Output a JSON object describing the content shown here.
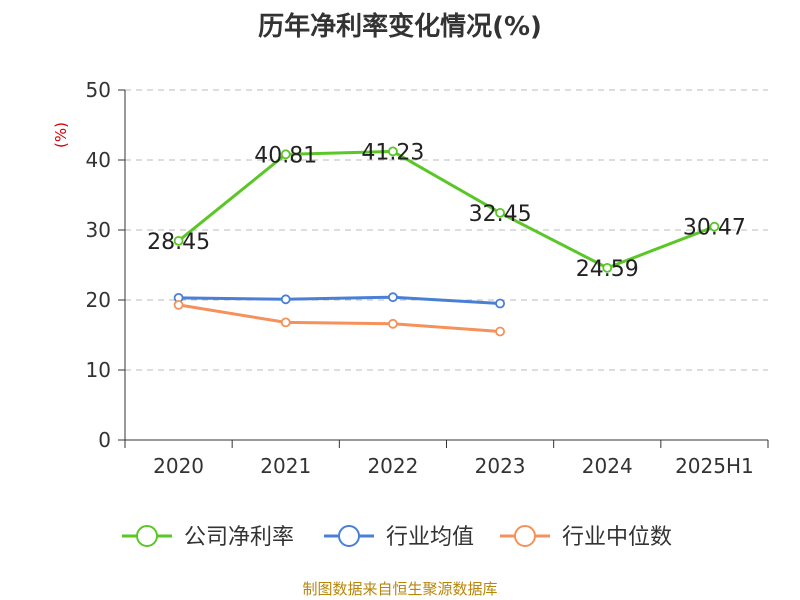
{
  "chart_data": {
    "type": "line",
    "title": "历年净利率变化情况(%)",
    "ylabel": "(%)",
    "categories": [
      "2020",
      "2021",
      "2022",
      "2023",
      "2024",
      "2025H1"
    ],
    "ylim": [
      0,
      50
    ],
    "yticks": [
      0,
      10,
      20,
      30,
      40,
      50
    ],
    "grid": true,
    "legend_position": "bottom",
    "series": [
      {
        "name": "公司净利率",
        "color": "#5ac727",
        "values": [
          28.45,
          40.81,
          41.23,
          32.45,
          24.59,
          30.47
        ],
        "labels": [
          "28.45",
          "40.81",
          "41.23",
          "32.45",
          "24.59",
          "30.47"
        ]
      },
      {
        "name": "行业均值",
        "color": "#4a7fd6",
        "values": [
          20.3,
          20.1,
          20.4,
          19.5,
          null,
          null
        ]
      },
      {
        "name": "行业中位数",
        "color": "#f5915a",
        "values": [
          19.3,
          16.8,
          16.6,
          15.5,
          null,
          null
        ]
      }
    ]
  },
  "source": "制图数据来自恒生聚源数据库"
}
